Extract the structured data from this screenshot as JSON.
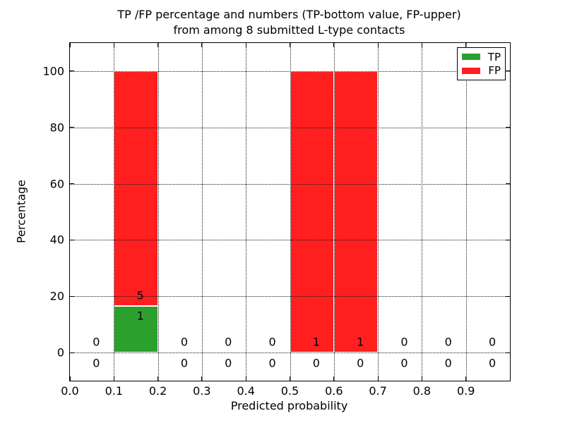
{
  "title": {
    "line1": "TP /FP percentage and numbers (TP-bottom value, FP-upper)",
    "line2": "from among 8 submitted L-type contacts"
  },
  "axes": {
    "xlabel": "Predicted probability",
    "ylabel": "Percentage"
  },
  "legend": {
    "position": "upper right",
    "items": [
      {
        "label": "TP",
        "color": "#2ca02c"
      },
      {
        "label": "FP",
        "color": "#ff1f1f"
      }
    ]
  },
  "colors": {
    "tp_green": "#2ca02c",
    "fp_red": "#ff1f1f",
    "background": "#ffffff",
    "axis_and_text": "#000000",
    "grid": "#1a1a1a"
  },
  "chart_data": {
    "type": "bar",
    "stacked": true,
    "title": "TP /FP percentage and numbers (TP-bottom value, FP-upper) from among 8 submitted L-type contacts",
    "xlabel": "Predicted probability",
    "ylabel": "Percentage",
    "xlim": [
      0.0,
      1.0
    ],
    "ylim": [
      -10,
      110
    ],
    "grid": "dotted",
    "legend_position": "upper right",
    "total_submitted_contacts": 8,
    "bin_width": 0.1,
    "x_ticks": [
      {
        "v": 0.0,
        "label": "0.0"
      },
      {
        "v": 0.1,
        "label": "0.1"
      },
      {
        "v": 0.2,
        "label": "0.2"
      },
      {
        "v": 0.3,
        "label": "0.3"
      },
      {
        "v": 0.4,
        "label": "0.4"
      },
      {
        "v": 0.5,
        "label": "0.5"
      },
      {
        "v": 0.6,
        "label": "0.6"
      },
      {
        "v": 0.7,
        "label": "0.7"
      },
      {
        "v": 0.8,
        "label": "0.8"
      },
      {
        "v": 0.9,
        "label": "0.9"
      }
    ],
    "y_ticks": [
      {
        "v": 0,
        "label": "0"
      },
      {
        "v": 20,
        "label": "20"
      },
      {
        "v": 40,
        "label": "40"
      },
      {
        "v": 60,
        "label": "60"
      },
      {
        "v": 80,
        "label": "80"
      },
      {
        "v": 100,
        "label": "100"
      }
    ],
    "series": [
      {
        "name": "TP",
        "color": "#2ca02c"
      },
      {
        "name": "FP",
        "color": "#ff1f1f"
      }
    ],
    "bins": [
      {
        "x0": 0.0,
        "x1": 0.1,
        "tp": 0,
        "fp": 0,
        "tp_pct": 0,
        "fp_pct": 0
      },
      {
        "x0": 0.1,
        "x1": 0.2,
        "tp": 1,
        "fp": 5,
        "tp_pct": 16.67,
        "fp_pct": 83.33
      },
      {
        "x0": 0.2,
        "x1": 0.3,
        "tp": 0,
        "fp": 0,
        "tp_pct": 0,
        "fp_pct": 0
      },
      {
        "x0": 0.3,
        "x1": 0.4,
        "tp": 0,
        "fp": 0,
        "tp_pct": 0,
        "fp_pct": 0
      },
      {
        "x0": 0.4,
        "x1": 0.5,
        "tp": 0,
        "fp": 0,
        "tp_pct": 0,
        "fp_pct": 0
      },
      {
        "x0": 0.5,
        "x1": 0.6,
        "tp": 0,
        "fp": 1,
        "tp_pct": 0,
        "fp_pct": 100
      },
      {
        "x0": 0.6,
        "x1": 0.7,
        "tp": 0,
        "fp": 1,
        "tp_pct": 0,
        "fp_pct": 100
      },
      {
        "x0": 0.7,
        "x1": 0.8,
        "tp": 0,
        "fp": 0,
        "tp_pct": 0,
        "fp_pct": 0
      },
      {
        "x0": 0.8,
        "x1": 0.9,
        "tp": 0,
        "fp": 0,
        "tp_pct": 0,
        "fp_pct": 0
      },
      {
        "x0": 0.9,
        "x1": 1.0,
        "tp": 0,
        "fp": 0,
        "tp_pct": 0,
        "fp_pct": 0
      }
    ]
  }
}
